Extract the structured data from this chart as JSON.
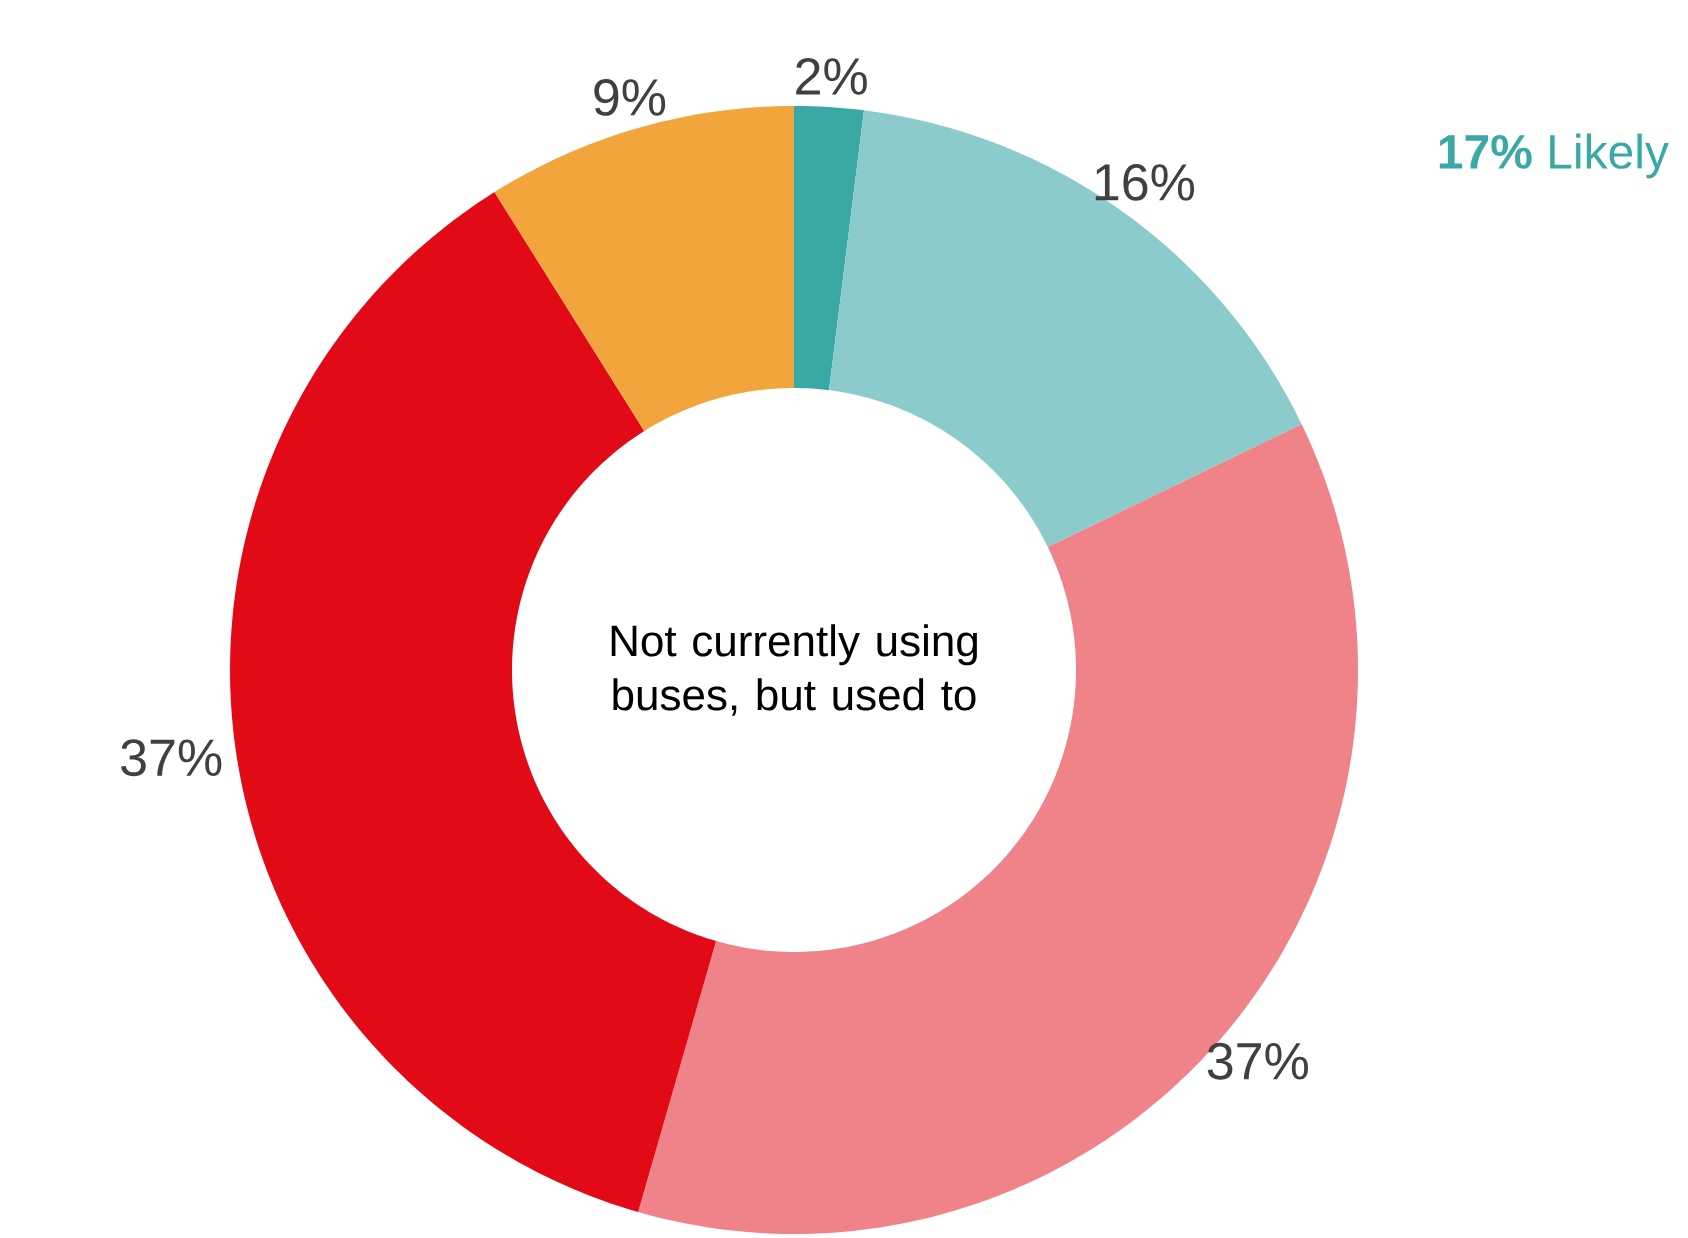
{
  "chart_data": {
    "type": "donut",
    "title": "Not currently using buses, but used to",
    "categories": [
      null,
      null,
      null,
      null,
      null
    ],
    "values": [
      2,
      16,
      37,
      37,
      9
    ],
    "value_labels": [
      "2%",
      "16%",
      "37%",
      "37%",
      "9%"
    ],
    "colors": [
      "#3aa8a4",
      "#8ccbcb",
      "#f0838a",
      "#e30a17",
      "#f2a53c"
    ],
    "annotations": [
      "**17%** Likely"
    ]
  }
}
